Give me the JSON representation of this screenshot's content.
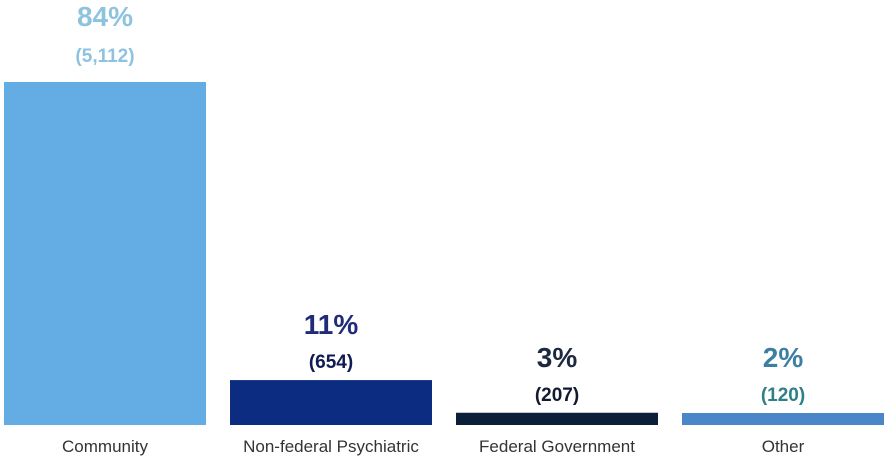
{
  "chart_data": {
    "type": "bar",
    "categories": [
      "Community",
      "Non-federal Psychiatric",
      "Federal Government",
      "Other"
    ],
    "values": [
      84,
      11,
      3,
      2
    ],
    "value_labels": [
      "84%",
      "11%",
      "3%",
      "2%"
    ],
    "count_labels": [
      "(5,112)",
      "(654)",
      "(207)",
      "(120)"
    ],
    "bar_colors": [
      "#63ADE4",
      "#0B2C80",
      "#0B1E3A",
      "#4A86C8"
    ],
    "pct_label_colors": [
      "#8EC3E0",
      "#202C78",
      "#1D2940",
      "#3C7FA3"
    ],
    "count_label_colors": [
      "#8EC3E0",
      "#101A55",
      "#101A30",
      "#2F7F86"
    ],
    "title": "",
    "xlabel": "",
    "ylabel": "",
    "ylim": [
      0,
      84
    ],
    "grid": false,
    "legend": "none"
  }
}
